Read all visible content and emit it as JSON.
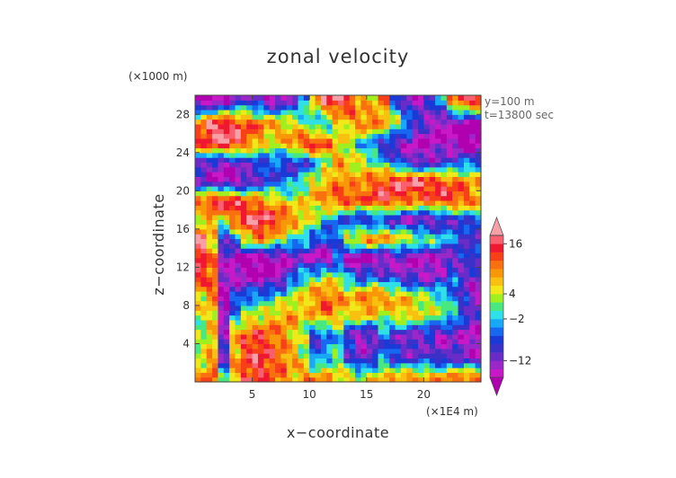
{
  "chart_data": {
    "type": "heatmap",
    "title": "zonal velocity",
    "xlabel": "x−coordinate",
    "ylabel": "z−coordinate",
    "x_unit": "(×1E4 m)",
    "y_unit": "(×1000 m)",
    "annotations": [
      "y=100 m",
      "t=13800 sec"
    ],
    "xlim": [
      0,
      25
    ],
    "ylim": [
      0,
      30
    ],
    "x_ticks": [
      5,
      10,
      15,
      20
    ],
    "y_ticks": [
      4,
      8,
      12,
      16,
      20,
      24,
      28
    ],
    "x_tick_labels": [
      "5",
      "10",
      "15",
      "20"
    ],
    "y_tick_labels": [
      "4",
      "8",
      "12",
      "16",
      "20",
      "24",
      "28"
    ],
    "colorbar": {
      "levels": [
        -20,
        -16,
        -14,
        -12,
        -10,
        -8,
        -6,
        -4,
        -2,
        0,
        2,
        4,
        6,
        8,
        10,
        12,
        14,
        16,
        18,
        20
      ],
      "colors": [
        "#b000b0",
        "#c818c8",
        "#9a28c8",
        "#6a2cc8",
        "#3a32c8",
        "#1a3ad8",
        "#1668f0",
        "#18a8f8",
        "#30e0e8",
        "#48e880",
        "#a0f020",
        "#f0e818",
        "#f8c010",
        "#f89808",
        "#f87010",
        "#f84018",
        "#f01830",
        "#f86070",
        "#f8a0a8"
      ],
      "tick_values": [
        16,
        4,
        -2,
        -12
      ],
      "tick_labels": [
        "16",
        "4",
        "−2",
        "−12"
      ]
    },
    "colormap_note": "",
    "field": {
      "nx": 25,
      "nz": 30,
      "bands": [
        {
          "z": 0.5,
          "v": [
            8,
            12,
            0,
            8,
            14,
            14,
            12,
            10,
            8,
            10,
            10,
            8,
            6,
            6,
            4,
            6,
            8,
            8,
            10,
            10,
            8,
            10,
            10,
            12,
            12
          ]
        },
        {
          "z": 2.5,
          "v": [
            4,
            8,
            -10,
            8,
            14,
            16,
            14,
            12,
            8,
            4,
            -6,
            -2,
            0,
            -8,
            -12,
            -10,
            -4,
            -8,
            -10,
            -10,
            -8,
            -12,
            -10,
            -12,
            -14
          ]
        },
        {
          "z": 5.0,
          "v": [
            2,
            6,
            -12,
            8,
            12,
            14,
            12,
            10,
            6,
            2,
            -8,
            -6,
            -2,
            -10,
            -14,
            -12,
            -6,
            -10,
            -12,
            -12,
            -10,
            -14,
            -12,
            -14,
            -16
          ]
        },
        {
          "z": 7.0,
          "v": [
            4,
            6,
            -14,
            -4,
            2,
            4,
            6,
            8,
            10,
            6,
            8,
            10,
            8,
            6,
            8,
            6,
            4,
            6,
            8,
            6,
            4,
            2,
            0,
            -6,
            -10
          ]
        },
        {
          "z": 9.0,
          "v": [
            6,
            10,
            -16,
            -8,
            -4,
            -4,
            -2,
            0,
            2,
            6,
            10,
            12,
            10,
            8,
            10,
            12,
            10,
            8,
            6,
            4,
            2,
            0,
            -4,
            -10,
            -14
          ]
        },
        {
          "z": 11.0,
          "v": [
            14,
            12,
            -14,
            -14,
            -16,
            -16,
            -16,
            -14,
            -6,
            -2,
            2,
            4,
            2,
            -4,
            -8,
            -6,
            -8,
            -10,
            -12,
            -12,
            -14,
            -10,
            -6,
            -10,
            -12
          ]
        },
        {
          "z": 13.0,
          "v": [
            16,
            10,
            -12,
            -16,
            -18,
            -18,
            -16,
            -16,
            -14,
            -12,
            -16,
            -16,
            -8,
            -16,
            -18,
            -16,
            -16,
            -14,
            -14,
            -16,
            -14,
            -16,
            -12,
            -10,
            -6
          ]
        },
        {
          "z": 15.0,
          "v": [
            18,
            6,
            -10,
            -4,
            6,
            10,
            8,
            4,
            0,
            -2,
            -6,
            -8,
            -4,
            6,
            10,
            12,
            10,
            8,
            6,
            4,
            2,
            0,
            -4,
            -8,
            -10
          ]
        },
        {
          "z": 17.0,
          "v": [
            2,
            8,
            4,
            12,
            16,
            18,
            16,
            14,
            10,
            6,
            2,
            -2,
            -6,
            -8,
            -10,
            -10,
            -8,
            -12,
            -14,
            -14,
            -14,
            -12,
            -10,
            -8,
            -6
          ]
        },
        {
          "z": 19.0,
          "v": [
            12,
            16,
            18,
            16,
            12,
            10,
            8,
            6,
            4,
            6,
            8,
            10,
            12,
            14,
            12,
            14,
            16,
            14,
            12,
            10,
            12,
            14,
            14,
            12,
            10
          ]
        },
        {
          "z": 21.0,
          "v": [
            -12,
            -14,
            -16,
            -16,
            -14,
            -10,
            -8,
            -6,
            -4,
            0,
            6,
            8,
            10,
            8,
            10,
            12,
            14,
            16,
            18,
            18,
            16,
            14,
            12,
            10,
            8
          ]
        },
        {
          "z": 23.0,
          "v": [
            -10,
            -12,
            -14,
            -12,
            -10,
            -8,
            -6,
            -8,
            -10,
            -8,
            -4,
            2,
            8,
            6,
            4,
            2,
            -2,
            -6,
            -10,
            -12,
            -12,
            -10,
            -8,
            -6,
            -6
          ]
        },
        {
          "z": 25.0,
          "v": [
            14,
            16,
            18,
            16,
            12,
            8,
            4,
            6,
            10,
            14,
            16,
            12,
            6,
            2,
            -2,
            -6,
            -10,
            -12,
            -14,
            -16,
            -16,
            -14,
            -16,
            -18,
            -18
          ]
        },
        {
          "z": 27.0,
          "v": [
            12,
            18,
            18,
            16,
            14,
            12,
            10,
            8,
            6,
            2,
            -4,
            -2,
            4,
            8,
            10,
            12,
            8,
            4,
            -2,
            -8,
            -12,
            -16,
            -16,
            -18,
            -18
          ]
        },
        {
          "z": 29.5,
          "v": [
            -18,
            -18,
            -16,
            -12,
            -10,
            -12,
            -16,
            -14,
            -10,
            -4,
            8,
            16,
            18,
            14,
            8,
            6,
            10,
            -6,
            -12,
            -14,
            -10,
            -2,
            10,
            16,
            18
          ]
        }
      ]
    }
  }
}
